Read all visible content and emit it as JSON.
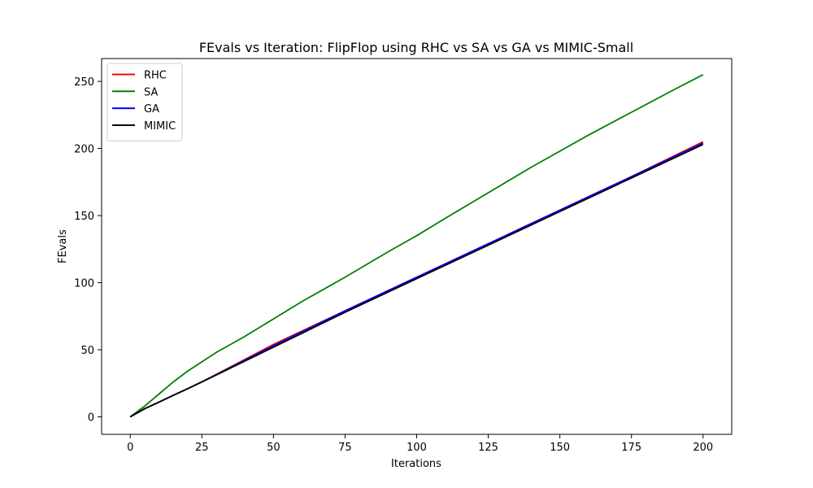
{
  "chart_data": {
    "type": "line",
    "title": "FEvals vs Iteration: FlipFlop using RHC vs SA vs GA vs MIMIC-Small",
    "xlabel": "Iterations",
    "ylabel": "FEvals",
    "xlim": [
      -10,
      210
    ],
    "ylim": [
      -13,
      267
    ],
    "x_ticks": [
      0,
      25,
      50,
      75,
      100,
      125,
      150,
      175,
      200
    ],
    "y_ticks": [
      0,
      50,
      100,
      150,
      200,
      250
    ],
    "grid": false,
    "legend_position": "top-left",
    "series": [
      {
        "name": "RHC",
        "color": "#ff0000",
        "x": [
          0,
          5,
          10,
          15,
          20,
          25,
          50,
          75,
          100,
          125,
          150,
          175,
          200
        ],
        "y": [
          0,
          6,
          11,
          16,
          21,
          26,
          54,
          79,
          104,
          129,
          154,
          179,
          205
        ]
      },
      {
        "name": "SA",
        "color": "#008000",
        "x": [
          0,
          5,
          10,
          15,
          20,
          25,
          30,
          40,
          50,
          60,
          75,
          90,
          100,
          110,
          125,
          140,
          150,
          160,
          175,
          190,
          200
        ],
        "y": [
          0,
          8,
          17,
          26,
          34,
          41,
          48,
          60,
          73,
          86,
          104,
          123,
          135,
          148,
          167,
          186,
          198,
          210,
          227,
          244,
          255
        ]
      },
      {
        "name": "GA",
        "color": "#0000ff",
        "x": [
          0,
          5,
          10,
          15,
          20,
          25,
          50,
          75,
          100,
          125,
          150,
          175,
          200
        ],
        "y": [
          0,
          6,
          11,
          16,
          21,
          26,
          53,
          79,
          104,
          129,
          154,
          179,
          204
        ]
      },
      {
        "name": "MIMIC",
        "color": "#000000",
        "x": [
          0,
          5,
          10,
          15,
          20,
          25,
          50,
          75,
          100,
          125,
          150,
          175,
          200
        ],
        "y": [
          0,
          6,
          11,
          16,
          21,
          26,
          52,
          78,
          103,
          128,
          153,
          178,
          203
        ]
      }
    ]
  }
}
